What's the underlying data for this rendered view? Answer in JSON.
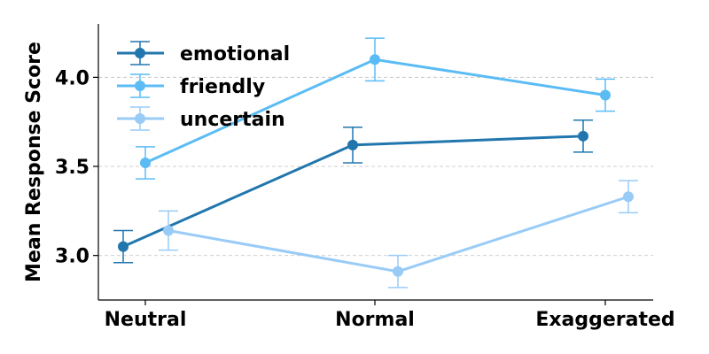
{
  "chart_data": {
    "type": "line",
    "title": "",
    "xlabel": "",
    "ylabel": "Mean Response Score",
    "categories": [
      "Neutral",
      "Normal",
      "Exaggerated"
    ],
    "ylim": [
      2.75,
      4.3
    ],
    "yticks": [
      "3.0",
      "3.5",
      "4.0"
    ],
    "grid": "horizontal dashed",
    "legend_position": "top-left",
    "series": [
      {
        "name": "emotional",
        "color": "#2176ae",
        "values": [
          3.05,
          3.62,
          3.67
        ],
        "errors": [
          0.09,
          0.1,
          0.09
        ]
      },
      {
        "name": "friendly",
        "color": "#5bbcf5",
        "values": [
          3.52,
          4.1,
          3.9
        ],
        "errors": [
          0.09,
          0.12,
          0.09
        ]
      },
      {
        "name": "uncertain",
        "color": "#99cbf7",
        "values": [
          3.14,
          2.91,
          3.33
        ],
        "errors": [
          0.11,
          0.09,
          0.09
        ]
      }
    ]
  }
}
